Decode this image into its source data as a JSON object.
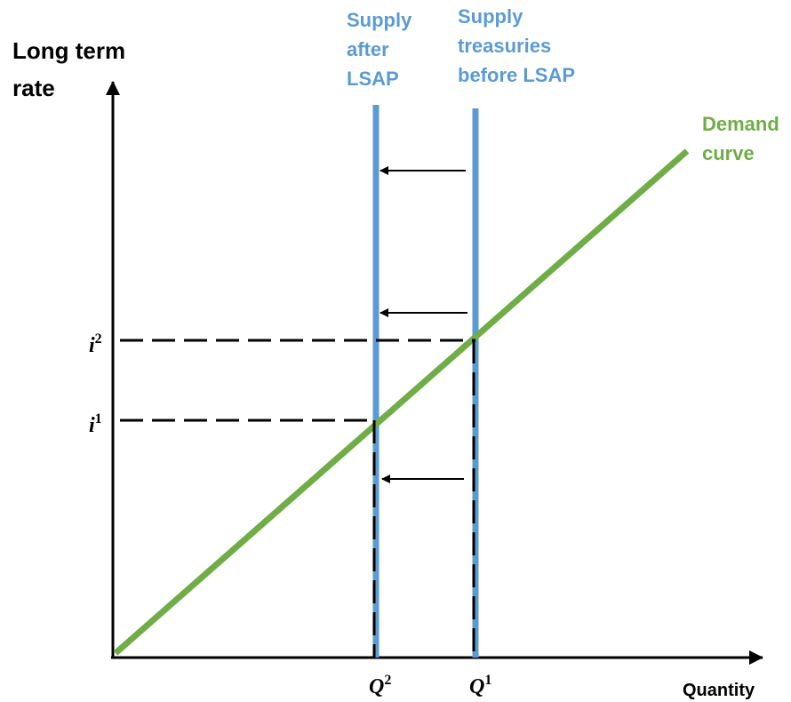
{
  "y_axis_label": [
    "Long term",
    "rate"
  ],
  "x_axis_label": "Quantity",
  "supply_after": [
    "Supply",
    "after",
    "LSAP"
  ],
  "supply_before": [
    "Supply",
    "treasuries",
    "before LSAP"
  ],
  "demand": [
    "Demand",
    "curve"
  ],
  "rate_labels": [
    {
      "base": "i",
      "sup": "2"
    },
    {
      "base": "i",
      "sup": "1"
    }
  ],
  "quantity_labels": [
    {
      "base": "Q",
      "sup": "2"
    },
    {
      "base": "Q",
      "sup": "1"
    }
  ]
}
